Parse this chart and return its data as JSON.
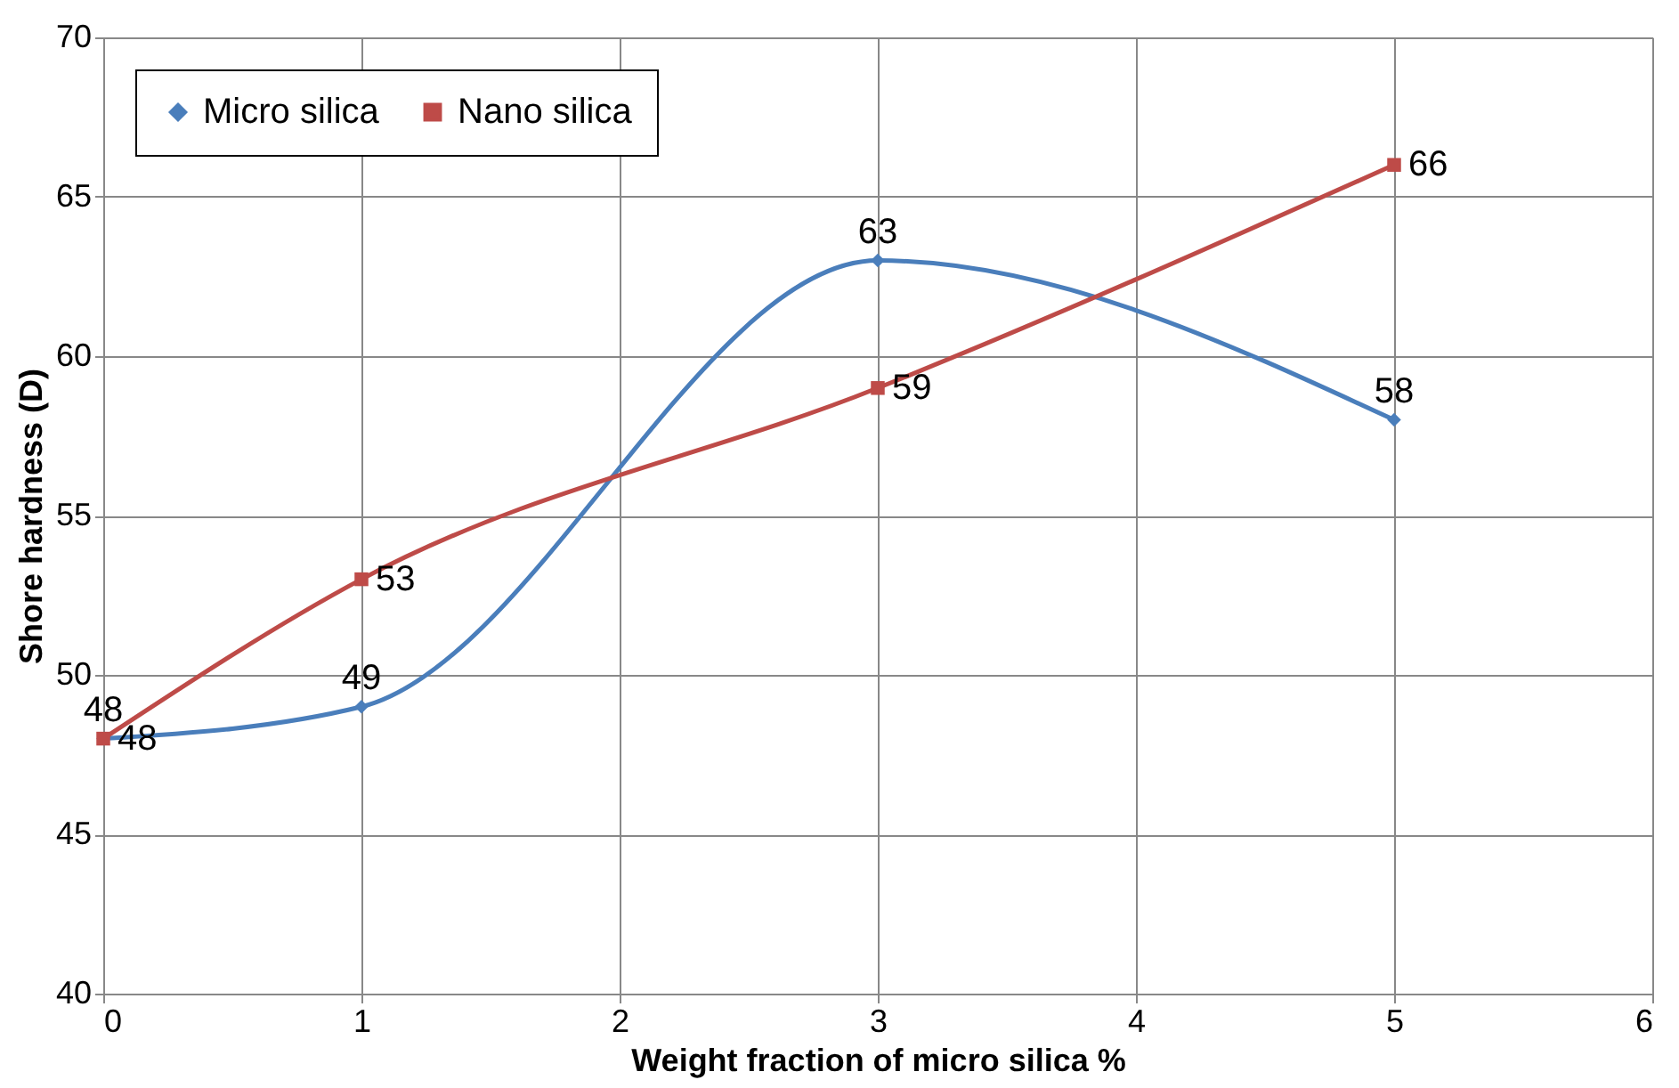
{
  "chart_data": {
    "type": "line",
    "xlabel": "Weight fraction of micro silica %",
    "ylabel": "Shore hardness (D)",
    "x": [
      0,
      1,
      3,
      5
    ],
    "series": [
      {
        "name": "Micro silica",
        "color": "#4a7ebb",
        "marker": "diamond",
        "values": [
          48,
          49,
          63,
          58
        ]
      },
      {
        "name": "Nano silica",
        "color": "#be4b48",
        "marker": "square",
        "values": [
          48,
          53,
          59,
          66
        ]
      }
    ],
    "xlim": [
      0,
      6
    ],
    "xticks": [
      0,
      1,
      2,
      3,
      4,
      5,
      6
    ],
    "ylim": [
      40,
      70
    ],
    "yticks": [
      40,
      45,
      50,
      55,
      60,
      65,
      70
    ],
    "grid": true,
    "legend": "top left",
    "data_labels": true,
    "line_style": "solid"
  }
}
